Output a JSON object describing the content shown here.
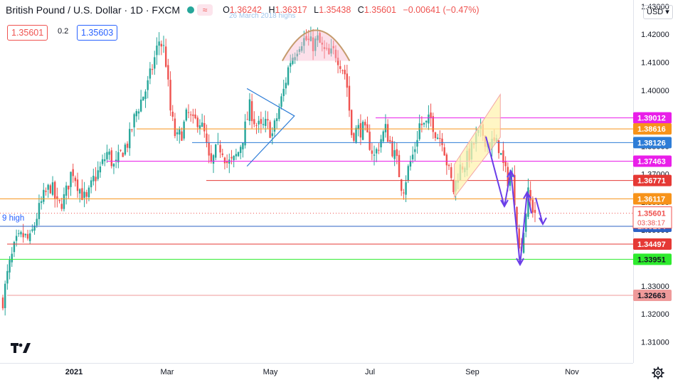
{
  "header": {
    "symbol": "British Pound / U.S. Dollar · 1D · FXCM",
    "ghost_text": "26 March 2018 highs",
    "ohlc": [
      {
        "k": "O",
        "v": "1.36242"
      },
      {
        "k": "H",
        "v": "1.36317"
      },
      {
        "k": "L",
        "v": "1.35438"
      },
      {
        "k": "C",
        "v": "1.35601"
      },
      {
        "k": "",
        "v": "−0.00641 (−0.47%)"
      }
    ],
    "sell_price": "1.35601",
    "spread": "0.2",
    "buy_price": "1.35603",
    "currency": "USD",
    "wave_icon": "≈"
  },
  "annotations": {
    "high_text": "9 high"
  },
  "colors": {
    "up": "#26a69a",
    "down": "#ef5350",
    "magenta": "#e91ee9",
    "orange": "#f7931a",
    "blue": "#2e7dd7",
    "red": "#e53935",
    "green": "#2eeb2e",
    "salmon": "#e57373",
    "arrow": "#6a3de8"
  },
  "chart_data": {
    "type": "candlestick",
    "symbol": "GBPUSD",
    "timeframe": "1D",
    "x_ticks": [
      "2021",
      "Mar",
      "May",
      "Jul",
      "Sep",
      "Nov"
    ],
    "y_ticks": [
      "1.43000",
      "1.42000",
      "1.41000",
      "1.40000",
      "1.39000",
      "1.38000",
      "1.37000",
      "1.36000",
      "1.35000",
      "1.34000",
      "1.33000",
      "1.32000",
      "1.31000"
    ],
    "ylim": [
      1.305,
      1.431
    ],
    "levels": [
      {
        "price": 1.39012,
        "label": "1.39012",
        "color": "#e91ee9",
        "text": "#ffffff"
      },
      {
        "price": 1.38616,
        "label": "1.38616",
        "color": "#f7931a",
        "text": "#ffffff"
      },
      {
        "price": 1.38126,
        "label": "1.38126",
        "color": "#2e7dd7",
        "text": "#ffffff"
      },
      {
        "price": 1.37463,
        "label": "1.37463",
        "color": "#e91ee9",
        "text": "#ffffff"
      },
      {
        "price": 1.36771,
        "label": "1.36771",
        "color": "#e53935",
        "text": "#ffffff"
      },
      {
        "price": 1.36117,
        "label": "1.36117",
        "color": "#f7931a",
        "text": "#ffffff"
      },
      {
        "price": 1.35134,
        "label": "1.35134",
        "color": "#2e63c6",
        "text": "#ffffff"
      },
      {
        "price": 1.34497,
        "label": "1.34497",
        "color": "#e53935",
        "text": "#ffffff"
      },
      {
        "price": 1.33951,
        "label": "1.33951",
        "color": "#2eeb2e",
        "text": "#131722"
      },
      {
        "price": 1.32663,
        "label": "1.32663",
        "color": "#ef9a9a",
        "text": "#131722"
      }
    ],
    "current": {
      "price": 1.35601,
      "label": "1.35601",
      "countdown": "03:38:17"
    },
    "close_path": [
      [
        0,
        1.325
      ],
      [
        8,
        1.336
      ],
      [
        18,
        1.345
      ],
      [
        28,
        1.348
      ],
      [
        38,
        1.346
      ],
      [
        48,
        1.355
      ],
      [
        58,
        1.362
      ],
      [
        68,
        1.366
      ],
      [
        78,
        1.358
      ],
      [
        88,
        1.362
      ],
      [
        98,
        1.372
      ],
      [
        108,
        1.365
      ],
      [
        118,
        1.36
      ],
      [
        128,
        1.368
      ],
      [
        138,
        1.372
      ],
      [
        148,
        1.378
      ],
      [
        158,
        1.372
      ],
      [
        168,
        1.378
      ],
      [
        178,
        1.382
      ],
      [
        188,
        1.392
      ],
      [
        198,
        1.398
      ],
      [
        205,
        1.402
      ],
      [
        213,
        1.41
      ],
      [
        221,
        1.418
      ],
      [
        229,
        1.414
      ],
      [
        237,
        1.392
      ],
      [
        245,
        1.382
      ],
      [
        253,
        1.385
      ],
      [
        261,
        1.392
      ],
      [
        269,
        1.388
      ],
      [
        277,
        1.39
      ],
      [
        285,
        1.384
      ],
      [
        293,
        1.372
      ],
      [
        301,
        1.378
      ],
      [
        309,
        1.38
      ],
      [
        317,
        1.374
      ],
      [
        325,
        1.374
      ],
      [
        333,
        1.378
      ],
      [
        341,
        1.385
      ],
      [
        349,
        1.394
      ],
      [
        357,
        1.388
      ],
      [
        365,
        1.386
      ],
      [
        373,
        1.388
      ],
      [
        381,
        1.384
      ],
      [
        389,
        1.392
      ],
      [
        397,
        1.4
      ],
      [
        405,
        1.41
      ],
      [
        413,
        1.414
      ],
      [
        421,
        1.418
      ],
      [
        429,
        1.418
      ],
      [
        437,
        1.416
      ],
      [
        445,
        1.418
      ],
      [
        453,
        1.414
      ],
      [
        461,
        1.412
      ],
      [
        469,
        1.414
      ],
      [
        477,
        1.41
      ],
      [
        485,
        1.405
      ],
      [
        493,
        1.384
      ],
      [
        501,
        1.386
      ],
      [
        509,
        1.386
      ],
      [
        517,
        1.382
      ],
      [
        525,
        1.376
      ],
      [
        533,
        1.382
      ],
      [
        541,
        1.386
      ],
      [
        549,
        1.38
      ],
      [
        557,
        1.374
      ],
      [
        565,
        1.364
      ],
      [
        573,
        1.372
      ],
      [
        581,
        1.378
      ],
      [
        589,
        1.388
      ],
      [
        597,
        1.387
      ],
      [
        605,
        1.39
      ],
      [
        613,
        1.384
      ],
      [
        621,
        1.383
      ],
      [
        629,
        1.372
      ],
      [
        637,
        1.364
      ],
      [
        645,
        1.372
      ],
      [
        653,
        1.374
      ],
      [
        661,
        1.378
      ],
      [
        669,
        1.383
      ],
      [
        677,
        1.385
      ],
      [
        685,
        1.381
      ],
      [
        693,
        1.381
      ],
      [
        701,
        1.38
      ],
      [
        707,
        1.373
      ],
      [
        713,
        1.368
      ],
      [
        719,
        1.37
      ],
      [
        725,
        1.358
      ],
      [
        730,
        1.341
      ],
      [
        736,
        1.35
      ],
      [
        742,
        1.363
      ],
      [
        748,
        1.358
      ],
      [
        754,
        1.356
      ]
    ],
    "x_domain_index": [
      0,
      754
    ],
    "patterns": {
      "rounded_top": {
        "from_index": 395,
        "to_index": 490
      },
      "pennant": {
        "from_index": 345,
        "to_index": 412
      },
      "rising_channel": {
        "from_index": 638,
        "to_index": 703
      }
    }
  }
}
